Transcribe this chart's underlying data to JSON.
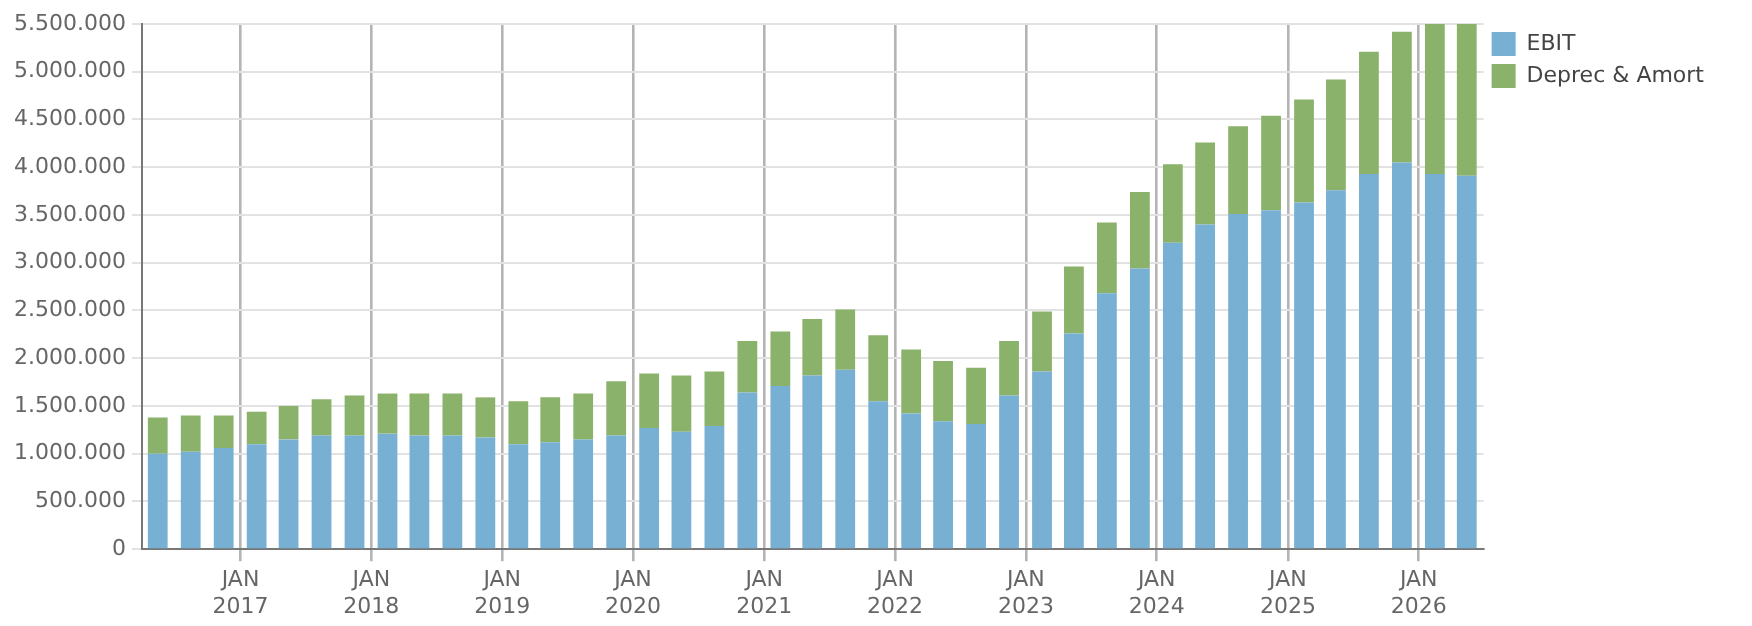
{
  "chart_data": {
    "type": "bar",
    "stacked": true,
    "grid": true,
    "legend": "top right",
    "x": [
      "2016-05-15",
      "2016-08-15",
      "2016-11-15",
      "2017-02-15",
      "2017-05-15",
      "2017-08-15",
      "2017-11-15",
      "2018-02-15",
      "2018-05-15",
      "2018-08-15",
      "2018-11-15",
      "2019-02-15",
      "2019-05-15",
      "2019-08-15",
      "2019-11-15",
      "2020-02-15",
      "2020-05-15",
      "2020-08-15",
      "2020-11-15",
      "2021-02-15",
      "2021-05-15",
      "2021-08-15",
      "2021-11-15",
      "2022-02-15",
      "2022-05-15",
      "2022-08-15",
      "2022-11-15",
      "2023-02-15",
      "2023-05-15",
      "2023-08-15",
      "2023-11-15",
      "2024-02-15",
      "2024-05-15",
      "2024-08-15",
      "2024-11-15",
      "2025-02-15",
      "2025-05-15",
      "2025-08-15",
      "2025-11-15",
      "2026-02-15",
      "2026-05-15"
    ],
    "xlim": [
      "2016-04-01",
      "2026-07-01"
    ],
    "xticks": [
      {
        "value": "2017-01-01",
        "label": "JAN 2017"
      },
      {
        "value": "2018-01-01",
        "label": "JAN 2018"
      },
      {
        "value": "2019-01-01",
        "label": "JAN 2019"
      },
      {
        "value": "2020-01-01",
        "label": "JAN 2020"
      },
      {
        "value": "2021-01-01",
        "label": "JAN 2021"
      },
      {
        "value": "2022-01-01",
        "label": "JAN 2022"
      },
      {
        "value": "2023-01-01",
        "label": "JAN 2023"
      },
      {
        "value": "2024-01-01",
        "label": "JAN 2024"
      },
      {
        "value": "2025-01-01",
        "label": "JAN 2025"
      },
      {
        "value": "2026-01-01",
        "label": "JAN 2026"
      }
    ],
    "ylim": [
      0,
      5500000
    ],
    "yticks": [
      {
        "value": 0,
        "label": "0"
      },
      {
        "value": 500000,
        "label": "500.000"
      },
      {
        "value": 1000000,
        "label": "1.000.000"
      },
      {
        "value": 1500000,
        "label": "1.500.000"
      },
      {
        "value": 2000000,
        "label": "2.000.000"
      },
      {
        "value": 2500000,
        "label": "2.500.000"
      },
      {
        "value": 3000000,
        "label": "3.000.000"
      },
      {
        "value": 3500000,
        "label": "3.500.000"
      },
      {
        "value": 4000000,
        "label": "4.000.000"
      },
      {
        "value": 4500000,
        "label": "4.500.000"
      },
      {
        "value": 5000000,
        "label": "5.000.000"
      },
      {
        "value": 5500000,
        "label": "5.500.000"
      }
    ],
    "series": [
      {
        "name": "EBIT",
        "color": "#77b0d2",
        "values": [
          1000000,
          1020000,
          1060000,
          1100000,
          1150000,
          1190000,
          1190000,
          1210000,
          1190000,
          1190000,
          1170000,
          1100000,
          1120000,
          1150000,
          1190000,
          1270000,
          1230000,
          1290000,
          1640000,
          1710000,
          1820000,
          1880000,
          1550000,
          1420000,
          1340000,
          1310000,
          1610000,
          1860000,
          2260000,
          2680000,
          2940000,
          3210000,
          3400000,
          3510000,
          3550000,
          3630000,
          3760000,
          3930000,
          4050000,
          3930000,
          3910000
        ]
      },
      {
        "name": "Deprec & Amort",
        "color": "#8bb26b",
        "values": [
          380000,
          380000,
          340000,
          340000,
          350000,
          380000,
          420000,
          420000,
          440000,
          440000,
          420000,
          450000,
          470000,
          480000,
          570000,
          570000,
          590000,
          570000,
          540000,
          570000,
          590000,
          630000,
          690000,
          670000,
          630000,
          590000,
          570000,
          630000,
          700000,
          740000,
          800000,
          820000,
          860000,
          920000,
          990000,
          1080000,
          1160000,
          1280000,
          1370000,
          1570000,
          1590000
        ]
      }
    ]
  }
}
